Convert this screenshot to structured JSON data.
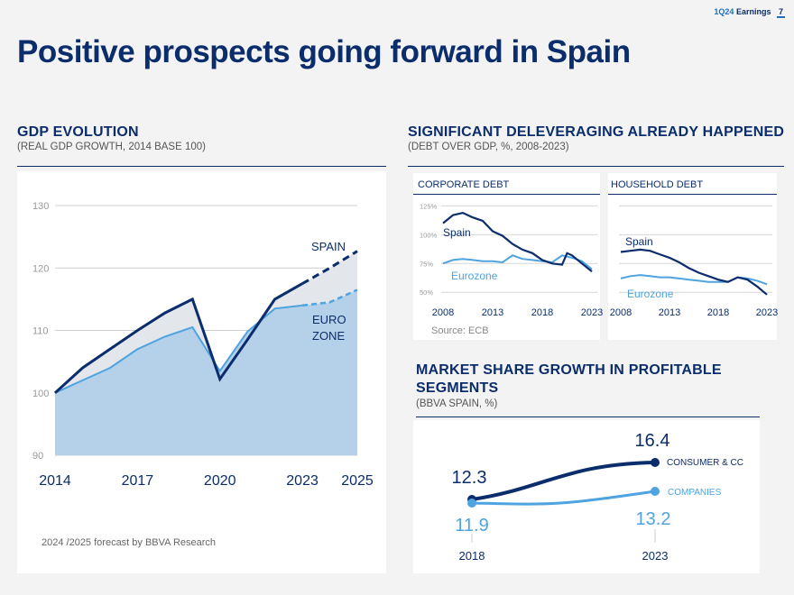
{
  "header": {
    "report": "1Q24",
    "section": "Earnings",
    "page": "7"
  },
  "title": "Positive prospects going forward in Spain",
  "gdp": {
    "title": "GDP EVOLUTION",
    "subtitle": "(REAL GDP GROWTH, 2014 BASE 100)",
    "footnote": "2024 /2025 forecast by BBVA Research",
    "spain_label": "SPAIN",
    "euro_label_1": "EURO",
    "euro_label_2": "ZONE"
  },
  "deleveraging": {
    "title": "SIGNIFICANT DELEVERAGING ALREADY HAPPENED",
    "subtitle": "(DEBT OVER GDP, %, 2008-2023)",
    "corporate_title": "CORPORATE DEBT",
    "household_title": "HOUSEHOLD DEBT",
    "source": "Source: ECB"
  },
  "market": {
    "title_1": "MARKET SHARE GROWTH IN PROFITABLE",
    "title_2": "SEGMENTS",
    "subtitle": "(BBVA SPAIN, %)"
  },
  "colors": {
    "navy": "#0b2d6b",
    "light_blue": "#4ea3e0",
    "fill_blue": "#b5d1ea",
    "gap_fill": "#e3e7ec"
  },
  "chart_data": [
    {
      "id": "gdp",
      "type": "area",
      "title": "GDP EVOLUTION",
      "xlim": [
        2014,
        2025
      ],
      "ylim": [
        90,
        130
      ],
      "yticks": [
        90,
        100,
        110,
        120,
        130
      ],
      "xticks": [
        2014,
        2017,
        2020,
        2023,
        2025
      ],
      "forecast_from": 2023,
      "series": [
        {
          "name": "SPAIN",
          "x": [
            2014,
            2015,
            2016,
            2017,
            2018,
            2019,
            2020,
            2021,
            2022,
            2023,
            2024,
            2025
          ],
          "values": [
            100,
            104,
            107,
            110,
            112.8,
            115,
            102.2,
            108.5,
            115,
            117.5,
            120,
            122.7
          ]
        },
        {
          "name": "EURO ZONE",
          "x": [
            2014,
            2015,
            2016,
            2017,
            2018,
            2019,
            2020,
            2021,
            2022,
            2023,
            2024,
            2025
          ],
          "values": [
            100,
            102,
            104,
            107,
            109,
            110.5,
            103.5,
            109.8,
            113.5,
            114,
            114.5,
            116.5
          ]
        }
      ]
    },
    {
      "id": "corporate",
      "type": "line",
      "title": "CORPORATE DEBT",
      "ylim": [
        40,
        130
      ],
      "yticks": [
        50,
        75,
        100,
        125
      ],
      "ytick_labels": [
        "50%",
        "75%",
        "100%",
        "125%"
      ],
      "xticks": [
        2008,
        2013,
        2018,
        2023
      ],
      "series": [
        {
          "name": "Spain",
          "x": [
            2008,
            2009,
            2010,
            2011,
            2012,
            2013,
            2014,
            2015,
            2016,
            2017,
            2018,
            2019,
            2020,
            2020.5,
            2021,
            2022,
            2023
          ],
          "values": [
            110,
            117,
            119,
            115,
            112,
            103,
            99,
            92,
            87,
            84,
            78,
            75,
            74,
            84,
            82,
            75,
            68
          ]
        },
        {
          "name": "Eurozone",
          "x": [
            2008,
            2009,
            2010,
            2011,
            2012,
            2013,
            2014,
            2015,
            2016,
            2017,
            2018,
            2019,
            2020,
            2021,
            2022,
            2023
          ],
          "values": [
            75,
            78,
            79,
            78,
            77,
            77,
            76,
            82,
            79,
            78,
            77,
            76,
            82,
            80,
            77,
            70
          ]
        }
      ]
    },
    {
      "id": "household",
      "type": "line",
      "title": "HOUSEHOLD DEBT",
      "ylim": [
        40,
        130
      ],
      "yticks": [
        50,
        75,
        100,
        125
      ],
      "xticks": [
        2008,
        2013,
        2018,
        2023
      ],
      "series": [
        {
          "name": "Spain",
          "x": [
            2008,
            2009,
            2010,
            2011,
            2012,
            2013,
            2014,
            2015,
            2016,
            2017,
            2018,
            2019,
            2020,
            2021,
            2022,
            2023
          ],
          "values": [
            85,
            86,
            87,
            86,
            83,
            80,
            76,
            71,
            67,
            64,
            61,
            59,
            63,
            61,
            55,
            48
          ]
        },
        {
          "name": "Eurozone",
          "x": [
            2008,
            2009,
            2010,
            2011,
            2012,
            2013,
            2014,
            2015,
            2016,
            2017,
            2018,
            2019,
            2020,
            2021,
            2022,
            2023
          ],
          "values": [
            62,
            64,
            65,
            64,
            63,
            63,
            62,
            61,
            60,
            59,
            59,
            59,
            63,
            62,
            60,
            57
          ]
        }
      ]
    },
    {
      "id": "market_share",
      "type": "line",
      "title": "MARKET SHARE GROWTH IN PROFITABLE SEGMENTS",
      "xticks": [
        2018,
        2023
      ],
      "series": [
        {
          "name": "CONSUMER & CC",
          "x": [
            2018,
            2023
          ],
          "values": [
            12.3,
            16.4
          ],
          "labels": [
            "12.3",
            "16.4"
          ]
        },
        {
          "name": "COMPANIES",
          "x": [
            2018,
            2023
          ],
          "values": [
            11.9,
            13.2
          ],
          "labels": [
            "11.9",
            "13.2"
          ]
        }
      ]
    }
  ]
}
